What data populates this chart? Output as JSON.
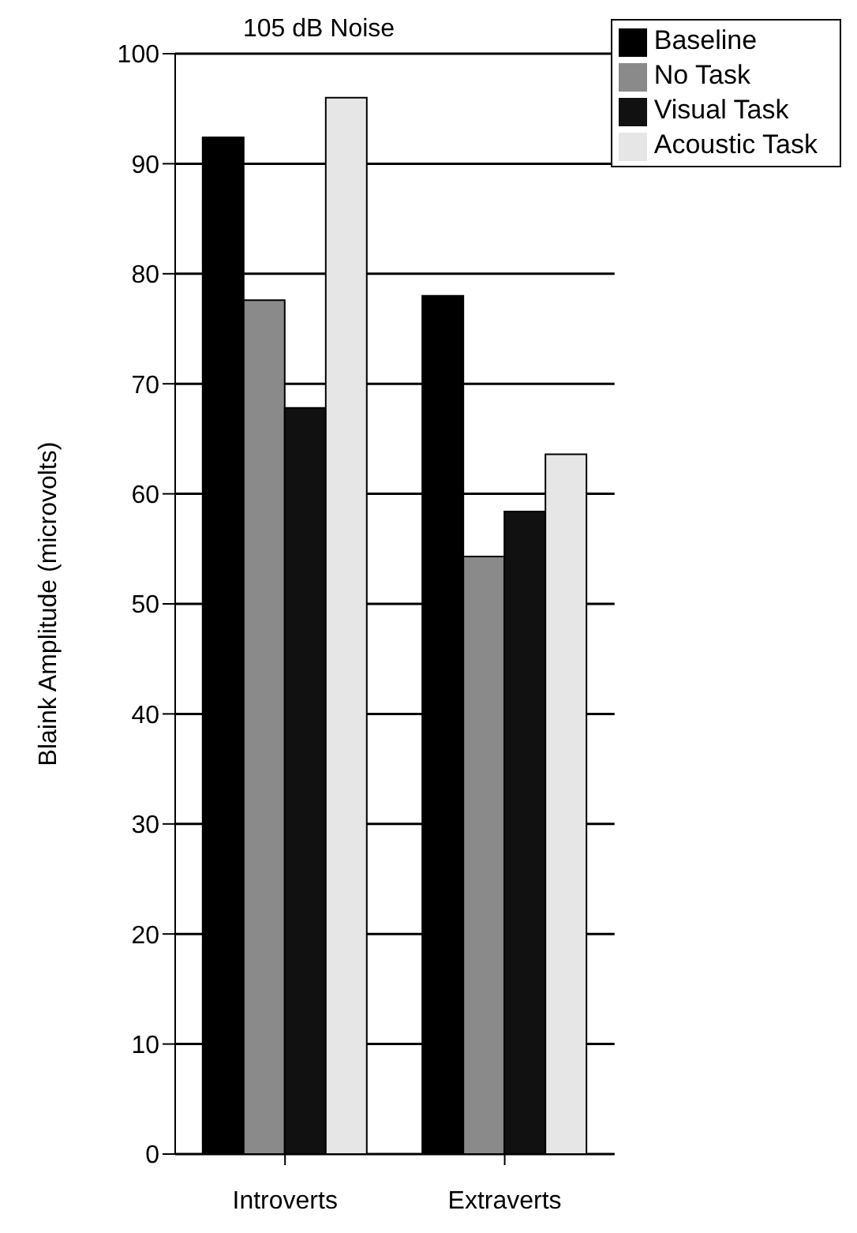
{
  "chart_data": {
    "type": "bar",
    "title": "105 dB Noise",
    "ylabel": "Blaink Amplitude (microvolts)",
    "categories": [
      "Introverts",
      "Extraverts"
    ],
    "series": [
      {
        "name": "Baseline",
        "color": "#000000",
        "values": [
          92.4,
          78
        ]
      },
      {
        "name": "No Task",
        "color": "#8a8a8a",
        "values": [
          77.6,
          54.3
        ]
      },
      {
        "name": "Visual Task",
        "color": "#111111",
        "values": [
          67.8,
          58.4
        ]
      },
      {
        "name": "Acoustic Task",
        "color": "#e6e6e6",
        "values": [
          96,
          63.6
        ]
      }
    ],
    "ylim": [
      0,
      100
    ],
    "yticks": [
      0,
      10,
      20,
      30,
      40,
      50,
      60,
      70,
      80,
      90,
      100
    ],
    "grid": "y",
    "legend": "top right"
  }
}
